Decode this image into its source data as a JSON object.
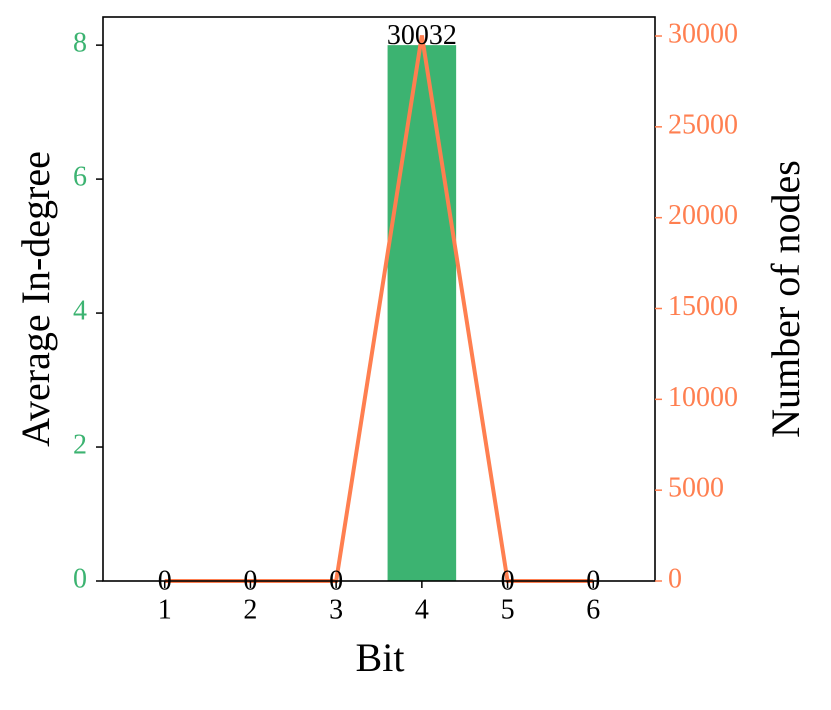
{
  "chart_data": {
    "type": "bar",
    "x": [
      1,
      2,
      3,
      4,
      5,
      6
    ],
    "xlim": [
      0.28,
      6.72
    ],
    "xticks": [
      1,
      2,
      3,
      4,
      5,
      6
    ],
    "xlabel": "Bit",
    "ylabel": "Average In-degree",
    "y2label": "Number of nodes",
    "ylim": [
      0,
      8.42
    ],
    "yticks": [
      0,
      2,
      4,
      6,
      8
    ],
    "y2lim": [
      0,
      31046
    ],
    "y2ticks": [
      0,
      5000,
      10000,
      15000,
      20000,
      25000,
      30000
    ],
    "ycolor": "#3cb371",
    "y2color": "#ff7f50",
    "series": [
      {
        "type": "bar",
        "color": "#3cb371",
        "values": [
          0,
          0,
          0,
          8,
          0,
          0
        ]
      },
      {
        "type": "line",
        "axis": "y2",
        "color": "#ff7f50",
        "values": [
          0,
          0,
          0,
          30032,
          0,
          0
        ],
        "show_labels": true
      }
    ]
  }
}
